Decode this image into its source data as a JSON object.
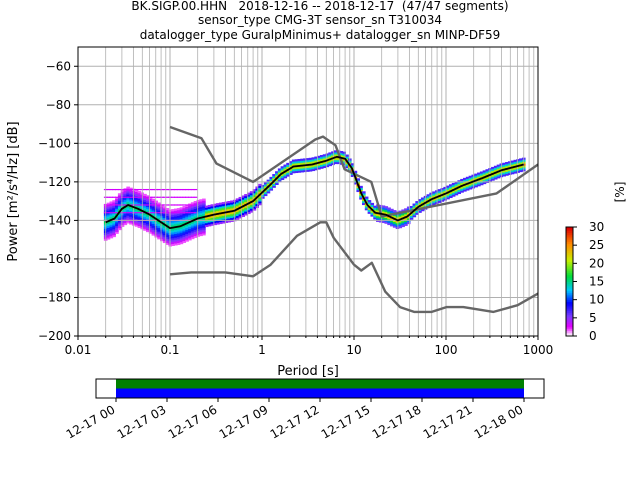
{
  "title_lines": [
    "BK.SIGP.00.HHN   2018-12-16 -- 2018-12-17  (47/47 segments)",
    "sensor_type CMG-3T sensor_sn T310034",
    "datalogger_type GuralpMinimus+ datalogger_sn MINP-DF59"
  ],
  "chart_data": {
    "type": "heatmap",
    "xlabel": "Period [s]",
    "ylabel": "Power [m²/s⁴/Hz] [dB]",
    "x_scale": "log",
    "xlim": [
      0.01,
      1000
    ],
    "ylim": [
      -200,
      -50
    ],
    "x_ticks": [
      {
        "value": 0.01,
        "label": "0.01"
      },
      {
        "value": 0.1,
        "label": "0.1"
      },
      {
        "value": 1,
        "label": "1"
      },
      {
        "value": 10,
        "label": "10"
      },
      {
        "value": 100,
        "label": "100"
      },
      {
        "value": 1000,
        "label": "1000"
      }
    ],
    "y_ticks": [
      -60,
      -80,
      -100,
      -120,
      -140,
      -160,
      -180,
      -200
    ],
    "grid": true,
    "colorbar": {
      "label": "[%]",
      "range": [
        0,
        30
      ],
      "ticks": [
        0,
        5,
        10,
        15,
        20,
        25,
        30
      ]
    },
    "series": [
      {
        "role": "noise-model-high",
        "color": "#666666",
        "points": [
          [
            0.1,
            -91.5
          ],
          [
            0.22,
            -97.4
          ],
          [
            0.32,
            -110.5
          ],
          [
            0.8,
            -120
          ],
          [
            3.8,
            -98
          ],
          [
            4.6,
            -96.5
          ],
          [
            6.3,
            -101
          ],
          [
            7.9,
            -113.5
          ],
          [
            15.4,
            -120
          ],
          [
            20,
            -138
          ],
          [
            354.8,
            -126
          ],
          [
            1000,
            -111
          ]
        ]
      },
      {
        "role": "noise-model-low",
        "color": "#666666",
        "points": [
          [
            0.1,
            -168
          ],
          [
            0.17,
            -167
          ],
          [
            0.4,
            -167
          ],
          [
            0.8,
            -169
          ],
          [
            1.24,
            -163
          ],
          [
            2.4,
            -148
          ],
          [
            4.3,
            -141
          ],
          [
            5,
            -141
          ],
          [
            6,
            -149
          ],
          [
            10,
            -163
          ],
          [
            12,
            -166
          ],
          [
            15.6,
            -162
          ],
          [
            21.9,
            -177
          ],
          [
            31.6,
            -185
          ],
          [
            45,
            -187.5
          ],
          [
            70,
            -187.5
          ],
          [
            101,
            -185
          ],
          [
            154,
            -185
          ],
          [
            328,
            -187.5
          ],
          [
            600,
            -184
          ],
          [
            1000,
            -178
          ]
        ]
      },
      {
        "role": "mode",
        "color": "#000000",
        "points": [
          [
            0.02,
            -141
          ],
          [
            0.025,
            -139
          ],
          [
            0.03,
            -134
          ],
          [
            0.035,
            -132
          ],
          [
            0.045,
            -134
          ],
          [
            0.06,
            -137
          ],
          [
            0.08,
            -141
          ],
          [
            0.1,
            -144
          ],
          [
            0.13,
            -143
          ],
          [
            0.2,
            -139
          ],
          [
            0.3,
            -137
          ],
          [
            0.5,
            -135
          ],
          [
            0.8,
            -130
          ],
          [
            1.2,
            -122
          ],
          [
            1.6,
            -116
          ],
          [
            2.2,
            -112
          ],
          [
            3.5,
            -111
          ],
          [
            5,
            -109
          ],
          [
            6.5,
            -107
          ],
          [
            8,
            -108
          ],
          [
            9.5,
            -113
          ],
          [
            12,
            -126
          ],
          [
            14,
            -132
          ],
          [
            17,
            -136
          ],
          [
            22,
            -137
          ],
          [
            30,
            -140
          ],
          [
            38,
            -138
          ],
          [
            50,
            -133
          ],
          [
            70,
            -129
          ],
          [
            100,
            -126
          ],
          [
            150,
            -122
          ],
          [
            250,
            -118
          ],
          [
            400,
            -114
          ],
          [
            700,
            -111
          ]
        ]
      }
    ],
    "time_axis": {
      "tick_labels": [
        "12-17 00",
        "12-17 03",
        "12-17 06",
        "12-17 09",
        "12-17 12",
        "12-17 15",
        "12-17 18",
        "12-17 21",
        "12-18 00"
      ],
      "green_fraction": 0.5
    }
  }
}
